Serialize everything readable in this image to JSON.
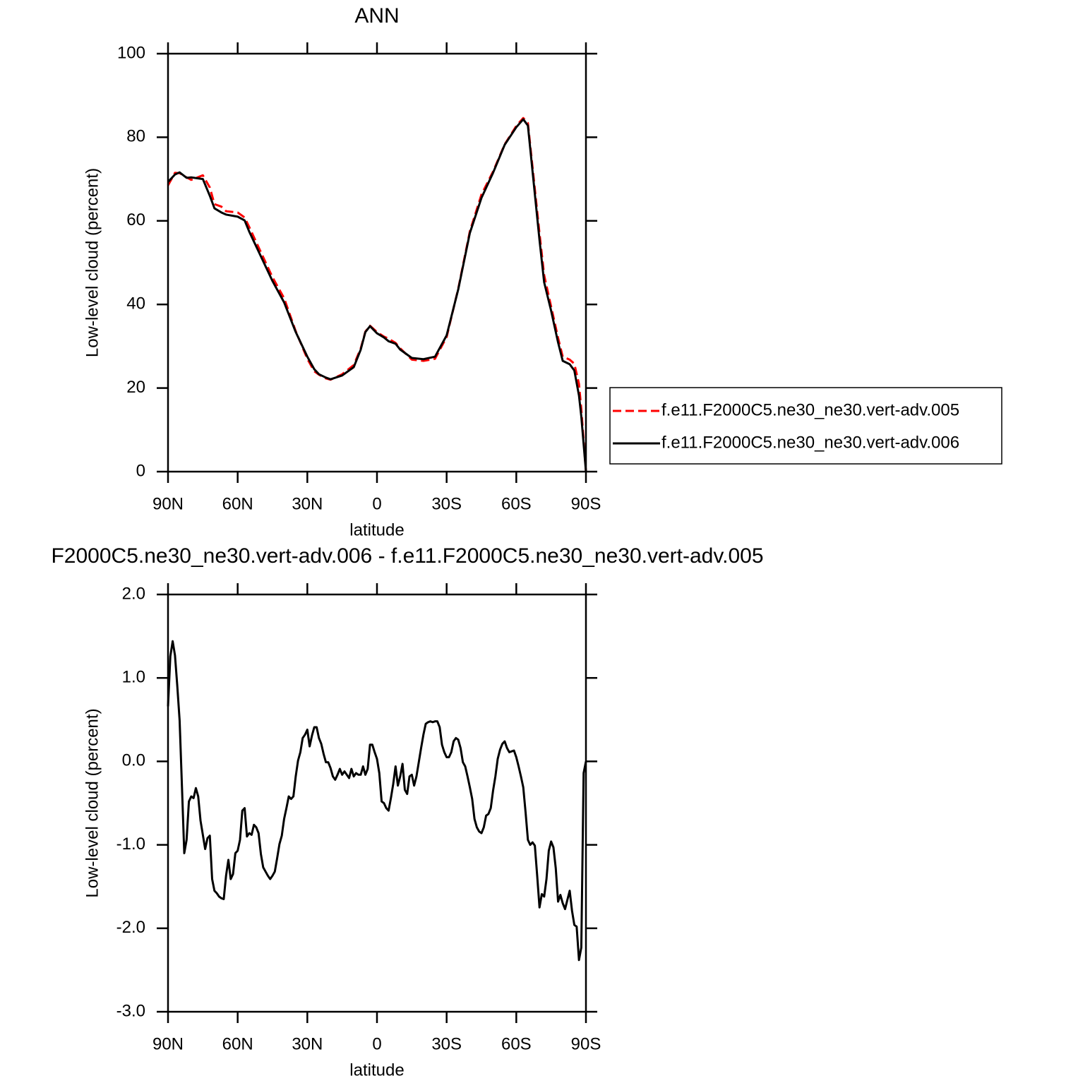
{
  "chart_data": [
    {
      "type": "line",
      "title": "ANN",
      "xlabel": "latitude",
      "ylabel": "Low-level cloud (percent)",
      "x": [
        90,
        87,
        85,
        82,
        80,
        75,
        72,
        70,
        67,
        65,
        60,
        57,
        55,
        50,
        45,
        40,
        35,
        30,
        27,
        25,
        22,
        20,
        15,
        10,
        7,
        5,
        3,
        0,
        -3,
        -5,
        -8,
        -10,
        -15,
        -20,
        -25,
        -30,
        -35,
        -40,
        -45,
        -50,
        -55,
        -60,
        -63,
        -65,
        -70,
        -72,
        -75,
        -78,
        -80,
        -83,
        -85,
        -87,
        -88,
        -90
      ],
      "series": [
        {
          "name": "f.e11.F2000C5.ne30_ne30.vert-adv.005",
          "color": "#ff0000",
          "line_style": "dashed",
          "values": [
            68.5,
            71.5,
            71.4,
            70.4,
            69.8,
            70.9,
            68,
            64,
            63.4,
            62.3,
            62,
            60.8,
            58.5,
            52.5,
            46.5,
            41.5,
            33.6,
            27,
            24,
            23.2,
            22.3,
            22,
            23.3,
            25.5,
            29.5,
            33.5,
            34.9,
            33.4,
            32.3,
            31.8,
            30.8,
            29.5,
            26.8,
            26.5,
            27,
            32.2,
            43.8,
            57.5,
            66.3,
            71.8,
            78.3,
            82.7,
            84.6,
            83.4,
            57,
            47,
            39.5,
            32,
            27.5,
            26.8,
            25.8,
            21,
            15,
            0
          ]
        },
        {
          "name": "f.e11.F2000C5.ne30_ne30.vert-adv.006",
          "color": "#000000",
          "line_style": "solid",
          "values": [
            69.3,
            71.1,
            71.6,
            70.3,
            70.4,
            70,
            66,
            63,
            62,
            61.5,
            61,
            60.1,
            57.4,
            51.5,
            45.6,
            40.5,
            33.4,
            27.5,
            24.5,
            23.3,
            22.5,
            22.1,
            23,
            25,
            29.2,
            33.4,
            34.8,
            33.1,
            32.1,
            31.2,
            30.6,
            29.2,
            27.2,
            26.9,
            27.5,
            32.6,
            43.6,
            57.1,
            65.5,
            71.5,
            78.2,
            82.4,
            84.3,
            82.8,
            55.4,
            45.3,
            38.5,
            30.9,
            26.5,
            25.7,
            24.2,
            18.2,
            13.2,
            0
          ]
        }
      ],
      "xlim": [
        90,
        -90
      ],
      "xticks": [
        {
          "value": 90,
          "label": "90N"
        },
        {
          "value": 60,
          "label": "60N"
        },
        {
          "value": 30,
          "label": "30N"
        },
        0,
        {
          "value": -30,
          "label": "30S"
        },
        {
          "value": -60,
          "label": "60S"
        },
        {
          "value": -90,
          "label": "90S"
        }
      ],
      "ylim": [
        0,
        100
      ],
      "yticks": [
        0,
        20,
        40,
        60,
        80,
        100
      ],
      "legend": "right"
    },
    {
      "type": "line",
      "title": "F2000C5.ne30_ne30.vert-adv.006 - f.e11.F2000C5.ne30_ne30.vert-adv.005",
      "xlabel": "latitude",
      "ylabel": "Low-level cloud (percent)",
      "x": [
        90,
        89,
        88,
        87,
        86,
        85,
        84,
        83,
        82,
        81,
        80,
        79,
        78,
        77,
        76,
        75,
        74,
        73,
        72,
        71,
        70,
        69,
        68,
        67,
        66,
        65,
        64,
        63,
        62,
        61,
        60,
        59,
        58,
        57,
        56,
        55,
        54,
        53,
        52,
        51,
        50,
        49,
        48,
        47,
        46,
        45,
        44,
        43,
        42,
        41,
        40,
        39,
        38,
        37,
        36,
        35,
        34,
        33,
        32,
        31,
        30,
        29,
        28,
        27,
        26,
        25,
        24,
        23,
        22,
        21,
        20,
        19,
        18,
        17,
        16,
        15,
        14,
        13,
        12,
        11,
        10,
        9,
        8,
        7,
        6,
        5,
        4,
        3,
        2,
        1,
        0,
        -1,
        -2,
        -3,
        -4,
        -5,
        -6,
        -7,
        -8,
        -9,
        -10,
        -11,
        -12,
        -13,
        -14,
        -15,
        -16,
        -17,
        -18,
        -19,
        -20,
        -21,
        -22,
        -23,
        -24,
        -25,
        -26,
        -27,
        -28,
        -29,
        -30,
        -31,
        -32,
        -33,
        -34,
        -35,
        -36,
        -37,
        -38,
        -39,
        -40,
        -41,
        -42,
        -43,
        -44,
        -45,
        -46,
        -47,
        -48,
        -49,
        -50,
        -51,
        -52,
        -53,
        -54,
        -55,
        -56,
        -57,
        -58,
        -59,
        -60,
        -61,
        -62,
        -63,
        -64,
        -65,
        -66,
        -67,
        -68,
        -69,
        -70,
        -71,
        -72,
        -73,
        -74,
        -75,
        -76,
        -77,
        -78,
        -79,
        -80,
        -81,
        -82,
        -83,
        -84,
        -85,
        -86,
        -87,
        -88,
        -89,
        -90
      ],
      "series": [
        {
          "color": "#000000",
          "line_style": "solid",
          "values": [
            0.66,
            1.26,
            1.44,
            1.27,
            0.9,
            0.49,
            -0.3,
            -1.1,
            -0.94,
            -0.48,
            -0.42,
            -0.44,
            -0.32,
            -0.42,
            -0.71,
            -0.88,
            -1.05,
            -0.92,
            -0.89,
            -1.41,
            -1.55,
            -1.58,
            -1.62,
            -1.64,
            -1.65,
            -1.37,
            -1.18,
            -1.41,
            -1.35,
            -1.1,
            -1.07,
            -0.94,
            -0.59,
            -0.56,
            -0.9,
            -0.86,
            -0.88,
            -0.76,
            -0.79,
            -0.86,
            -1.11,
            -1.27,
            -1.32,
            -1.37,
            -1.41,
            -1.37,
            -1.32,
            -1.16,
            -0.99,
            -0.89,
            -0.69,
            -0.56,
            -0.42,
            -0.45,
            -0.42,
            -0.18,
            0.01,
            0.11,
            0.28,
            0.32,
            0.38,
            0.18,
            0.31,
            0.41,
            0.41,
            0.28,
            0.21,
            0.09,
            -0.01,
            -0.01,
            -0.08,
            -0.18,
            -0.22,
            -0.16,
            -0.09,
            -0.16,
            -0.12,
            -0.16,
            -0.2,
            -0.09,
            -0.18,
            -0.14,
            -0.16,
            -0.16,
            -0.06,
            -0.16,
            -0.09,
            0.2,
            0.2,
            0.11,
            0.03,
            -0.14,
            -0.48,
            -0.5,
            -0.56,
            -0.59,
            -0.44,
            -0.27,
            -0.06,
            -0.29,
            -0.18,
            -0.03,
            -0.34,
            -0.39,
            -0.18,
            -0.16,
            -0.29,
            -0.18,
            -0.01,
            0.16,
            0.32,
            0.45,
            0.47,
            0.48,
            0.47,
            0.48,
            0.48,
            0.41,
            0.2,
            0.11,
            0.05,
            0.05,
            0.11,
            0.24,
            0.28,
            0.26,
            0.16,
            -0.01,
            -0.06,
            -0.18,
            -0.31,
            -0.45,
            -0.69,
            -0.79,
            -0.84,
            -0.86,
            -0.79,
            -0.65,
            -0.63,
            -0.56,
            -0.35,
            -0.18,
            0.03,
            0.14,
            0.21,
            0.24,
            0.16,
            0.11,
            0.12,
            0.13,
            0.05,
            -0.06,
            -0.18,
            -0.31,
            -0.61,
            -0.94,
            -1.0,
            -0.97,
            -1.01,
            -1.37,
            -1.75,
            -1.59,
            -1.62,
            -1.41,
            -1.07,
            -0.96,
            -1.03,
            -1.28,
            -1.68,
            -1.6,
            -1.7,
            -1.77,
            -1.66,
            -1.55,
            -1.79,
            -1.96,
            -1.98,
            -2.38,
            -2.23,
            -0.14,
            0.0
          ]
        }
      ],
      "xlim": [
        90,
        -90
      ],
      "xticks": [
        {
          "value": 90,
          "label": "90N"
        },
        {
          "value": 60,
          "label": "60N"
        },
        {
          "value": 30,
          "label": "30N"
        },
        0,
        {
          "value": -30,
          "label": "30S"
        },
        {
          "value": -60,
          "label": "60S"
        },
        {
          "value": -90,
          "label": "90S"
        }
      ],
      "ylim": [
        -3,
        2
      ],
      "yticks": [
        {
          "value": -3,
          "label": "-3.0"
        },
        {
          "value": -2,
          "label": "-2.0"
        },
        {
          "value": -1,
          "label": "-1.0"
        },
        {
          "value": 0,
          "label": "0.0"
        },
        {
          "value": 1,
          "label": "1.0"
        },
        {
          "value": 2,
          "label": "2.0"
        }
      ]
    }
  ]
}
